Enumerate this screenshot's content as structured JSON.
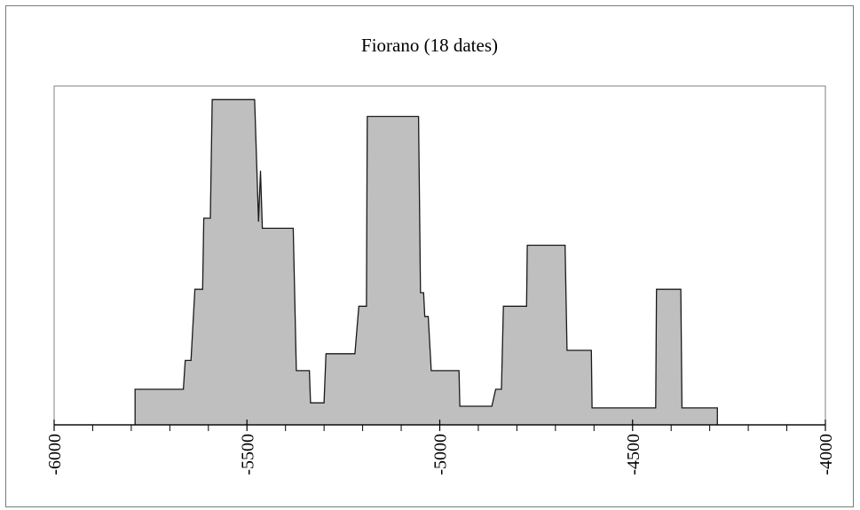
{
  "chart_data": {
    "type": "area",
    "title": "Fiorano (18 dates)",
    "xlabel": "",
    "ylabel": "",
    "xlim": [
      -6000,
      -4000
    ],
    "ylim": [
      0,
      1
    ],
    "grid": false,
    "legend": "none",
    "x_tick_labels": [
      "-6000",
      "-5500",
      "-5000",
      "-4500",
      "-4000"
    ],
    "x_major_ticks": [
      -6000,
      -5500,
      -5000,
      -4500,
      -4000
    ],
    "x_minor_ticks": [
      -5900,
      -5800,
      -5700,
      -5600,
      -5400,
      -5300,
      -5200,
      -5100,
      -4900,
      -4800,
      -4700,
      -4600,
      -4400,
      -4300,
      -4200,
      -4100
    ],
    "fill_color": "#bfbfbf",
    "line_color": "#1a1a1a",
    "series": [
      {
        "x": [
          -6000,
          -5790,
          -5790,
          -5665,
          -5660,
          -5645,
          -5635,
          -5615,
          -5612,
          -5595,
          -5590,
          -5480,
          -5470,
          -5465,
          -5460,
          -5455,
          -5450,
          -5445,
          -5415,
          -5400,
          -5380,
          -5372,
          -5360,
          -5338,
          -5335,
          -5300,
          -5295,
          -5225,
          -5220,
          -5210,
          -5205,
          -5190,
          -5188,
          -5055,
          -5050,
          -5042,
          -5039,
          -5030,
          -5022,
          -4950,
          -4948,
          -4865,
          -4855,
          -4840,
          -4835,
          -4810,
          -4805,
          -4775,
          -4773,
          -4675,
          -4670,
          -4607,
          -4605,
          -4440,
          -4438,
          -4375,
          -4372,
          -4280,
          -4280,
          -4000
        ],
        "y": [
          0,
          0,
          0.105,
          0.105,
          0.19,
          0.19,
          0.4,
          0.4,
          0.61,
          0.61,
          0.96,
          0.96,
          0.6,
          0.75,
          0.58,
          0.58,
          0.58,
          0.58,
          0.58,
          0.58,
          0.58,
          0.16,
          0.16,
          0.16,
          0.065,
          0.065,
          0.21,
          0.21,
          0.21,
          0.35,
          0.35,
          0.35,
          0.91,
          0.91,
          0.39,
          0.39,
          0.32,
          0.32,
          0.16,
          0.16,
          0.055,
          0.055,
          0.105,
          0.105,
          0.35,
          0.35,
          0.35,
          0.35,
          0.53,
          0.53,
          0.22,
          0.22,
          0.05,
          0.05,
          0.4,
          0.4,
          0.05,
          0.05,
          0,
          0
        ]
      }
    ]
  }
}
